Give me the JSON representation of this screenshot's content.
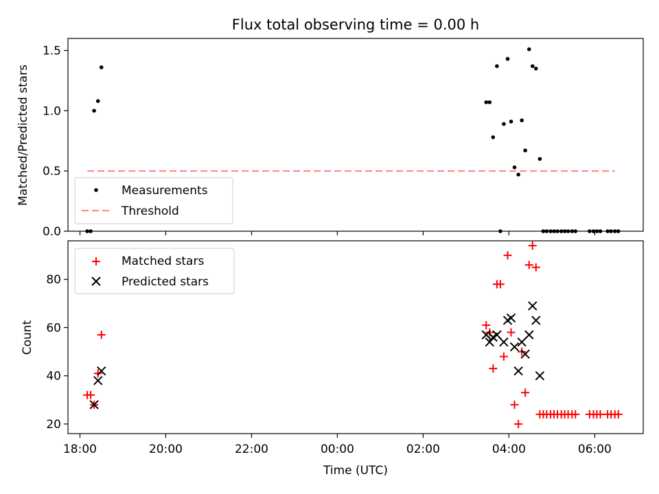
{
  "chart_data": {
    "title": "Flux total observing time = 0.00 h",
    "x_axis": {
      "label": "Time (UTC)",
      "range_hours": [
        17.72,
        31.13
      ],
      "ticks": [
        {
          "hour": 18,
          "label": "18:00"
        },
        {
          "hour": 20,
          "label": "20:00"
        },
        {
          "hour": 22,
          "label": "22:00"
        },
        {
          "hour": 24,
          "label": "00:00"
        },
        {
          "hour": 26,
          "label": "02:00"
        },
        {
          "hour": 28,
          "label": "04:00"
        },
        {
          "hour": 30,
          "label": "06:00"
        }
      ]
    },
    "top": {
      "type": "scatter",
      "ylabel": "Matched/Predicted stars",
      "ylim": [
        0,
        1.6
      ],
      "yticks": [
        0.0,
        0.5,
        1.0,
        1.5
      ],
      "ytick_labels": [
        "0.0",
        "0.5",
        "1.0",
        "1.5"
      ],
      "legend": {
        "location": "lower-left",
        "labels": [
          "Measurements",
          "Threshold"
        ]
      },
      "threshold": {
        "value": 0.5,
        "x_start": 18.17,
        "x_end": 30.47,
        "color": "#ff8080"
      },
      "measurements": [
        [
          18.17,
          0.0
        ],
        [
          18.25,
          0.0
        ],
        [
          18.33,
          1.0
        ],
        [
          18.42,
          1.08
        ],
        [
          18.5,
          1.36
        ],
        [
          27.47,
          1.07
        ],
        [
          27.55,
          1.07
        ],
        [
          27.63,
          0.78
        ],
        [
          27.72,
          1.37
        ],
        [
          27.8,
          0.0
        ],
        [
          27.88,
          0.89
        ],
        [
          27.97,
          1.43
        ],
        [
          28.05,
          0.91
        ],
        [
          28.13,
          0.53
        ],
        [
          28.22,
          0.47
        ],
        [
          28.3,
          0.92
        ],
        [
          28.38,
          0.67
        ],
        [
          28.47,
          1.51
        ],
        [
          28.55,
          1.37
        ],
        [
          28.63,
          1.35
        ],
        [
          28.72,
          0.6
        ],
        [
          28.8,
          0.0
        ],
        [
          28.88,
          0.0
        ],
        [
          28.97,
          0.0
        ],
        [
          29.05,
          0.0
        ],
        [
          29.13,
          0.0
        ],
        [
          29.22,
          0.0
        ],
        [
          29.3,
          0.0
        ],
        [
          29.38,
          0.0
        ],
        [
          29.47,
          0.0
        ],
        [
          29.55,
          0.0
        ],
        [
          29.88,
          0.0
        ],
        [
          29.97,
          0.0
        ],
        [
          30.05,
          0.0
        ],
        [
          30.13,
          0.0
        ],
        [
          30.3,
          0.0
        ],
        [
          30.38,
          0.0
        ],
        [
          30.47,
          0.0
        ],
        [
          30.55,
          0.0
        ]
      ],
      "measurement_color": "#000000"
    },
    "bottom": {
      "type": "scatter",
      "ylabel": "Count",
      "ylim": [
        16,
        96
      ],
      "yticks": [
        20,
        40,
        60,
        80
      ],
      "ytick_labels": [
        "20",
        "40",
        "60",
        "80"
      ],
      "legend": {
        "location": "top-left",
        "labels": [
          "Matched stars",
          "Predicted stars"
        ]
      },
      "matched": [
        [
          18.17,
          32
        ],
        [
          18.25,
          32
        ],
        [
          18.33,
          28
        ],
        [
          18.42,
          41
        ],
        [
          18.5,
          57
        ],
        [
          27.47,
          61
        ],
        [
          27.55,
          58
        ],
        [
          27.63,
          43
        ],
        [
          27.72,
          78
        ],
        [
          27.8,
          78
        ],
        [
          27.88,
          48
        ],
        [
          27.97,
          90
        ],
        [
          28.05,
          58
        ],
        [
          28.13,
          28
        ],
        [
          28.22,
          20
        ],
        [
          28.3,
          50
        ],
        [
          28.38,
          33
        ],
        [
          28.47,
          86
        ],
        [
          28.55,
          94
        ],
        [
          28.63,
          85
        ],
        [
          28.72,
          24
        ],
        [
          28.8,
          24
        ],
        [
          28.88,
          24
        ],
        [
          28.97,
          24
        ],
        [
          29.05,
          24
        ],
        [
          29.13,
          24
        ],
        [
          29.22,
          24
        ],
        [
          29.3,
          24
        ],
        [
          29.38,
          24
        ],
        [
          29.47,
          24
        ],
        [
          29.55,
          24
        ],
        [
          29.88,
          24
        ],
        [
          29.97,
          24
        ],
        [
          30.05,
          24
        ],
        [
          30.13,
          24
        ],
        [
          30.3,
          24
        ],
        [
          30.38,
          24
        ],
        [
          30.47,
          24
        ],
        [
          30.55,
          24
        ]
      ],
      "predicted": [
        [
          18.33,
          28
        ],
        [
          18.42,
          38
        ],
        [
          18.5,
          42
        ],
        [
          27.47,
          57
        ],
        [
          27.55,
          54
        ],
        [
          27.63,
          56
        ],
        [
          27.72,
          57
        ],
        [
          27.88,
          54
        ],
        [
          27.97,
          63
        ],
        [
          28.05,
          64
        ],
        [
          28.13,
          52
        ],
        [
          28.22,
          42
        ],
        [
          28.3,
          54
        ],
        [
          28.38,
          49
        ],
        [
          28.47,
          57
        ],
        [
          28.55,
          69
        ],
        [
          28.63,
          63
        ],
        [
          28.72,
          40
        ]
      ],
      "matched_color": "#ff0000",
      "predicted_color": "#000000"
    }
  }
}
